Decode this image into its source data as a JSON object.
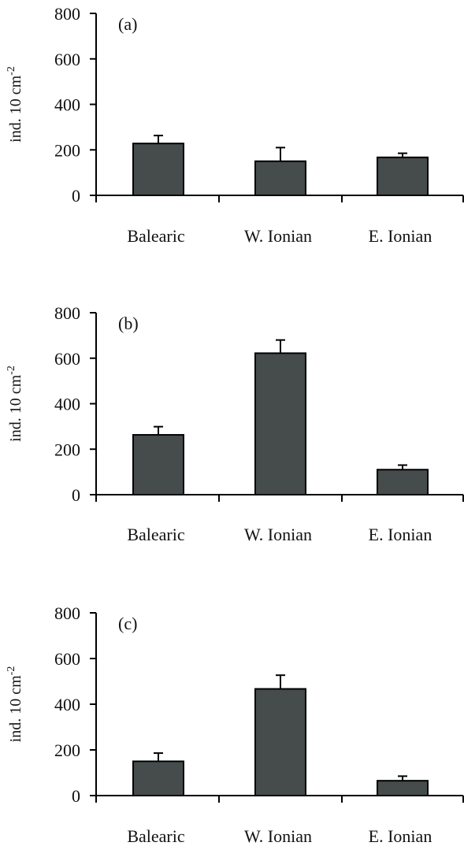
{
  "colors": {
    "bar": "#464c4c",
    "bar_stroke": "#000000",
    "axis": "#000000"
  },
  "chart_data": [
    {
      "type": "bar",
      "panel_label": "(a)",
      "ylabel": "ind. 10 cm",
      "ylabel_sup": "-2",
      "categories": [
        "Balearic",
        "W. Ionian",
        "E. Ionian"
      ],
      "values": [
        228,
        150,
        167
      ],
      "errors": [
        35,
        60,
        18
      ],
      "ylim": [
        0,
        800
      ],
      "yticks": [
        0,
        200,
        400,
        600,
        800
      ],
      "grid": false
    },
    {
      "type": "bar",
      "panel_label": "(b)",
      "ylabel": "ind. 10 cm",
      "ylabel_sup": "-2",
      "categories": [
        "Balearic",
        "W. Ionian",
        "E. Ionian"
      ],
      "values": [
        263,
        622,
        110
      ],
      "errors": [
        36,
        58,
        20
      ],
      "ylim": [
        0,
        800
      ],
      "yticks": [
        0,
        200,
        400,
        600,
        800
      ],
      "grid": false
    },
    {
      "type": "bar",
      "panel_label": "(c)",
      "ylabel": "ind. 10 cm",
      "ylabel_sup": "-2",
      "categories": [
        "Balearic",
        "W. Ionian",
        "E. Ionian"
      ],
      "values": [
        150,
        467,
        65
      ],
      "errors": [
        36,
        60,
        20
      ],
      "ylim": [
        0,
        800
      ],
      "yticks": [
        0,
        200,
        400,
        600,
        800
      ],
      "grid": false
    }
  ]
}
